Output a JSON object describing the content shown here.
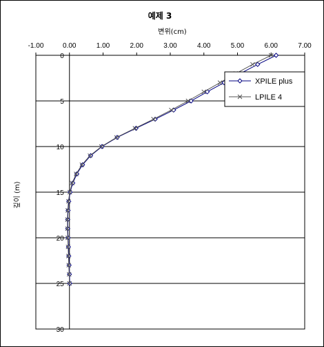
{
  "chart_data": {
    "type": "line",
    "title": "예제 3",
    "xlabel": "변위(cm)",
    "ylabel": "깊이 (m)",
    "xlim": [
      -1.0,
      7.0
    ],
    "ylim": [
      0,
      30
    ],
    "x_ticks": [
      "-1.00",
      "0.00",
      "1.00",
      "2.00",
      "3.00",
      "4.00",
      "5.00",
      "6.00",
      "7.00"
    ],
    "y_ticks": [
      "0",
      "5",
      "10",
      "15",
      "20",
      "25",
      "30"
    ],
    "grid": "horizontal",
    "x_axis_position": "top",
    "y_reversed": true,
    "legend_position": "top-right",
    "series": [
      {
        "name": "XPILE plus",
        "marker": "diamond",
        "color": "#000080",
        "points": [
          [
            6.15,
            0
          ],
          [
            5.6,
            1
          ],
          [
            5.08,
            2
          ],
          [
            4.6,
            3
          ],
          [
            4.1,
            4
          ],
          [
            3.62,
            5
          ],
          [
            3.1,
            6
          ],
          [
            2.55,
            7
          ],
          [
            1.98,
            8
          ],
          [
            1.42,
            9
          ],
          [
            0.97,
            10
          ],
          [
            0.63,
            11
          ],
          [
            0.39,
            12
          ],
          [
            0.22,
            13
          ],
          [
            0.1,
            14
          ],
          [
            0.02,
            15
          ],
          [
            -0.02,
            16
          ],
          [
            -0.04,
            17
          ],
          [
            -0.05,
            18
          ],
          [
            -0.05,
            19
          ],
          [
            -0.04,
            20
          ],
          [
            -0.03,
            21
          ],
          [
            -0.02,
            22
          ],
          [
            -0.01,
            23
          ],
          [
            0.0,
            24
          ],
          [
            0.01,
            25
          ]
        ]
      },
      {
        "name": "LPILE 4",
        "marker": "x",
        "color": "#555555",
        "points": [
          [
            6.0,
            0
          ],
          [
            5.45,
            1
          ],
          [
            4.95,
            2
          ],
          [
            4.48,
            3
          ],
          [
            4.0,
            4
          ],
          [
            3.53,
            5
          ],
          [
            3.03,
            6
          ],
          [
            2.5,
            7
          ],
          [
            1.95,
            8
          ],
          [
            1.4,
            9
          ],
          [
            0.95,
            10
          ],
          [
            0.61,
            11
          ],
          [
            0.37,
            12
          ],
          [
            0.2,
            13
          ],
          [
            0.08,
            14
          ],
          [
            0.01,
            15
          ],
          [
            -0.03,
            16
          ],
          [
            -0.05,
            17
          ],
          [
            -0.06,
            18
          ],
          [
            -0.06,
            19
          ],
          [
            -0.05,
            20
          ],
          [
            -0.04,
            21
          ],
          [
            -0.03,
            22
          ],
          [
            -0.02,
            23
          ],
          [
            -0.01,
            24
          ],
          [
            0.0,
            25
          ]
        ]
      }
    ]
  }
}
